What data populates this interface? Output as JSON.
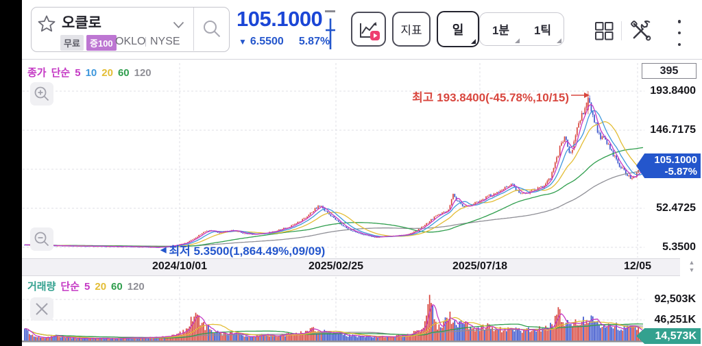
{
  "header": {
    "symbol": {
      "name": "오클로",
      "free_badge": "무료",
      "leverage_badge": "증100",
      "ticker": "OKLO",
      "exchange": "NYSE"
    },
    "price": {
      "value": "105.1000",
      "down_icon": "▼",
      "change": "6.5500",
      "change_pct": "5.87%"
    },
    "buttons": {
      "indicator": "지표",
      "daily": "일",
      "min1": "1분",
      "tick1": "1틱"
    }
  },
  "price_chart": {
    "legend": {
      "title": "종가",
      "type": "단순",
      "periods": [
        {
          "label": "5",
          "color": "#c438c4"
        },
        {
          "label": "10",
          "color": "#3e97dc"
        },
        {
          "label": "20",
          "color": "#e3bd35"
        },
        {
          "label": "60",
          "color": "#2f9e4d"
        },
        {
          "label": "120",
          "color": "#8f8f96"
        }
      ]
    },
    "bar_count_box": "395",
    "axis_labels": [
      "193.8400",
      "146.7175",
      "52.4725",
      "5.3500"
    ],
    "current_badge": {
      "price": "105.1000",
      "pct": "-5.87%"
    },
    "annotations": {
      "high": "최고 193.8400(-45.78%,10/15)",
      "low": "최저 5.3500(1,864.49%,09/09)",
      "low_arrow": "◀"
    }
  },
  "x_axis": {
    "labels": [
      "2024/10/01",
      "2025/02/25",
      "2025/07/18",
      "12/05"
    ],
    "up_arrow": "▲",
    "down_arrow": "▼"
  },
  "volume_chart": {
    "legend": {
      "title": "거래량",
      "type": "단순",
      "periods": [
        {
          "label": "5",
          "color": "#c438c4"
        },
        {
          "label": "20",
          "color": "#e3bd35"
        },
        {
          "label": "60",
          "color": "#2f9e4d"
        },
        {
          "label": "120",
          "color": "#8f8f96"
        }
      ]
    },
    "axis_labels": [
      "92,503K",
      "46,251K"
    ],
    "current_badge": "14,573K"
  },
  "chart_data": {
    "type": "candlestick+volume",
    "symbol": "OKLO",
    "bar_count": 395,
    "price_axis": {
      "ticks": [
        193.84,
        146.7175,
        99.595,
        52.4725,
        5.35
      ],
      "high": 193.84,
      "low": 5.35,
      "last_close": 105.1
    },
    "volume_axis": {
      "ticks_k": [
        92503,
        46251
      ],
      "last_volume_k": 14573
    },
    "x_tick_dates": [
      "2024/10/01",
      "2025/02/25",
      "2025/07/18",
      "12/05"
    ],
    "high_point": {
      "price": 193.84,
      "date": "10/15"
    },
    "low_point": {
      "price": 5.35,
      "date": "09/09"
    },
    "colors": {
      "up": "#d8463e",
      "down": "#3b55cc",
      "ma5": "#c438c4",
      "ma10": "#3e97dc",
      "ma20": "#e3bd35",
      "ma60": "#2f9e4d",
      "ma120": "#8f8f96",
      "grid": "#dfdfe6"
    },
    "price_path": [
      [
        36,
        8.2
      ],
      [
        70,
        7.6
      ],
      [
        110,
        7.0
      ],
      [
        150,
        6.6
      ],
      [
        190,
        6.2
      ],
      [
        215,
        5.8
      ],
      [
        230,
        5.35
      ],
      [
        245,
        6.5
      ],
      [
        260,
        8.5
      ],
      [
        272,
        11
      ],
      [
        285,
        17
      ],
      [
        298,
        24
      ],
      [
        308,
        26
      ],
      [
        318,
        23
      ],
      [
        330,
        25
      ],
      [
        342,
        26
      ],
      [
        355,
        22
      ],
      [
        368,
        21
      ],
      [
        382,
        22
      ],
      [
        396,
        24
      ],
      [
        410,
        27
      ],
      [
        424,
        31
      ],
      [
        438,
        37
      ],
      [
        450,
        44
      ],
      [
        460,
        52
      ],
      [
        467,
        56
      ],
      [
        474,
        50
      ],
      [
        482,
        44
      ],
      [
        490,
        38
      ],
      [
        500,
        31
      ],
      [
        512,
        26
      ],
      [
        525,
        22
      ],
      [
        538,
        19
      ],
      [
        548,
        17.5
      ],
      [
        560,
        18.5
      ],
      [
        575,
        19.5
      ],
      [
        590,
        20.5
      ],
      [
        602,
        23
      ],
      [
        612,
        28
      ],
      [
        622,
        34
      ],
      [
        634,
        42
      ],
      [
        646,
        47
      ],
      [
        655,
        52
      ],
      [
        661,
        68
      ],
      [
        666,
        62
      ],
      [
        673,
        57
      ],
      [
        680,
        54
      ],
      [
        690,
        57
      ],
      [
        700,
        62
      ],
      [
        710,
        66
      ],
      [
        720,
        70
      ],
      [
        730,
        72
      ],
      [
        740,
        79
      ],
      [
        748,
        81
      ],
      [
        755,
        72
      ],
      [
        762,
        69
      ],
      [
        770,
        72
      ],
      [
        778,
        74
      ],
      [
        786,
        76
      ],
      [
        794,
        80
      ],
      [
        802,
        88
      ],
      [
        808,
        100
      ],
      [
        814,
        118
      ],
      [
        820,
        135
      ],
      [
        825,
        140
      ],
      [
        830,
        118
      ],
      [
        836,
        126
      ],
      [
        842,
        148
      ],
      [
        848,
        162
      ],
      [
        853,
        175
      ],
      [
        857,
        188
      ],
      [
        861,
        176
      ],
      [
        866,
        160
      ],
      [
        871,
        148
      ],
      [
        876,
        134
      ],
      [
        881,
        140
      ],
      [
        886,
        131
      ],
      [
        891,
        121
      ],
      [
        896,
        114
      ],
      [
        902,
        106
      ],
      [
        908,
        99
      ],
      [
        914,
        93
      ],
      [
        920,
        88
      ],
      [
        926,
        91
      ],
      [
        932,
        97
      ],
      [
        938,
        105.1
      ]
    ],
    "volume_path_k": [
      [
        36,
        26000
      ],
      [
        50,
        9000
      ],
      [
        65,
        6000
      ],
      [
        80,
        12000
      ],
      [
        95,
        7000
      ],
      [
        115,
        5500
      ],
      [
        135,
        5000
      ],
      [
        160,
        4800
      ],
      [
        185,
        5200
      ],
      [
        210,
        6000
      ],
      [
        230,
        7000
      ],
      [
        245,
        9000
      ],
      [
        258,
        14000
      ],
      [
        270,
        22000
      ],
      [
        283,
        52000
      ],
      [
        292,
        46000
      ],
      [
        300,
        30000
      ],
      [
        312,
        20000
      ],
      [
        325,
        14000
      ],
      [
        340,
        16000
      ],
      [
        355,
        11000
      ],
      [
        370,
        9500
      ],
      [
        385,
        13000
      ],
      [
        400,
        11000
      ],
      [
        415,
        13000
      ],
      [
        430,
        16000
      ],
      [
        445,
        20000
      ],
      [
        458,
        24000
      ],
      [
        468,
        21000
      ],
      [
        480,
        17000
      ],
      [
        492,
        15000
      ],
      [
        505,
        12000
      ],
      [
        520,
        10000
      ],
      [
        535,
        9000
      ],
      [
        550,
        8500
      ],
      [
        565,
        9500
      ],
      [
        580,
        10500
      ],
      [
        595,
        12000
      ],
      [
        608,
        20000
      ],
      [
        618,
        26000
      ],
      [
        628,
        93000
      ],
      [
        636,
        34000
      ],
      [
        645,
        30000
      ],
      [
        655,
        60000
      ],
      [
        665,
        32000
      ],
      [
        678,
        40000
      ],
      [
        690,
        26000
      ],
      [
        700,
        28000
      ],
      [
        710,
        31000
      ],
      [
        722,
        27000
      ],
      [
        735,
        24000
      ],
      [
        748,
        28000
      ],
      [
        760,
        22000
      ],
      [
        772,
        24000
      ],
      [
        785,
        26000
      ],
      [
        797,
        30000
      ],
      [
        808,
        38000
      ],
      [
        815,
        64000
      ],
      [
        823,
        42000
      ],
      [
        832,
        36000
      ],
      [
        840,
        40000
      ],
      [
        848,
        45000
      ],
      [
        857,
        52000
      ],
      [
        865,
        46000
      ],
      [
        873,
        40000
      ],
      [
        880,
        36000
      ],
      [
        888,
        40000
      ],
      [
        896,
        33000
      ],
      [
        904,
        30000
      ],
      [
        912,
        29000
      ],
      [
        920,
        34000
      ],
      [
        928,
        27000
      ],
      [
        938,
        14573
      ]
    ]
  }
}
